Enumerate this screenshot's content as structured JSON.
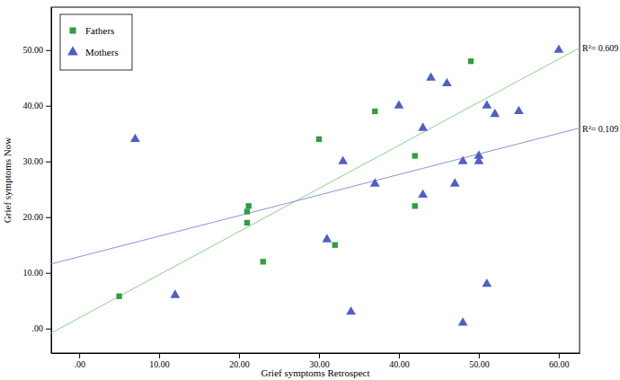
{
  "chart_data": {
    "type": "scatter",
    "x_label": "Grief symptoms Retrospect",
    "y_label": "Grief symptoms Now",
    "xlim": [
      -3.5,
      62.6
    ],
    "ylim": [
      -4.4,
      57.7
    ],
    "xticks": [
      {
        "value": 0,
        "label": ".00"
      },
      {
        "value": 10,
        "label": "10.00"
      },
      {
        "value": 20,
        "label": "20.00"
      },
      {
        "value": 30,
        "label": "30.00"
      },
      {
        "value": 40,
        "label": "40.00"
      },
      {
        "value": 50,
        "label": "50.00"
      },
      {
        "value": 60,
        "label": "60.00"
      }
    ],
    "yticks": [
      {
        "value": 0,
        "label": ".00"
      },
      {
        "value": 10,
        "label": "10.00"
      },
      {
        "value": 20,
        "label": "20.00"
      },
      {
        "value": 30,
        "label": "30.00"
      },
      {
        "value": 40,
        "label": "40.00"
      },
      {
        "value": 50,
        "label": "50.00"
      }
    ],
    "legend": "top-left",
    "series": [
      {
        "name": "Fathers",
        "color": "#2e9e3e",
        "marker": "square",
        "x": [
          5,
          21,
          21,
          21.2,
          23,
          30,
          32,
          37,
          42,
          42,
          49
        ],
        "values": [
          5.8,
          21,
          19,
          22,
          12,
          34,
          15,
          39,
          31,
          22,
          48
        ]
      },
      {
        "name": "Mothers",
        "color": "#4f5fc8",
        "marker": "triangle",
        "x": [
          7,
          12,
          31,
          33,
          34,
          37,
          40,
          43,
          43,
          44,
          46,
          47,
          48,
          48,
          50,
          50,
          51,
          51,
          52,
          55,
          60
        ],
        "values": [
          34,
          6,
          16,
          30,
          3,
          26,
          40,
          36,
          24,
          45,
          44,
          26,
          30,
          1,
          31,
          30,
          40,
          8,
          38.5,
          39,
          50
        ]
      }
    ],
    "fit_lines": [
      {
        "color": "#86d486",
        "label": "R²= 0.609",
        "x": [
          -3.5,
          62.6
        ],
        "values": [
          -0.8,
          50.4
        ]
      },
      {
        "color": "#8f8fdc",
        "label": "R²= 0.109",
        "x": [
          -3.5,
          62.6
        ],
        "values": [
          11.6,
          36
        ]
      }
    ]
  }
}
